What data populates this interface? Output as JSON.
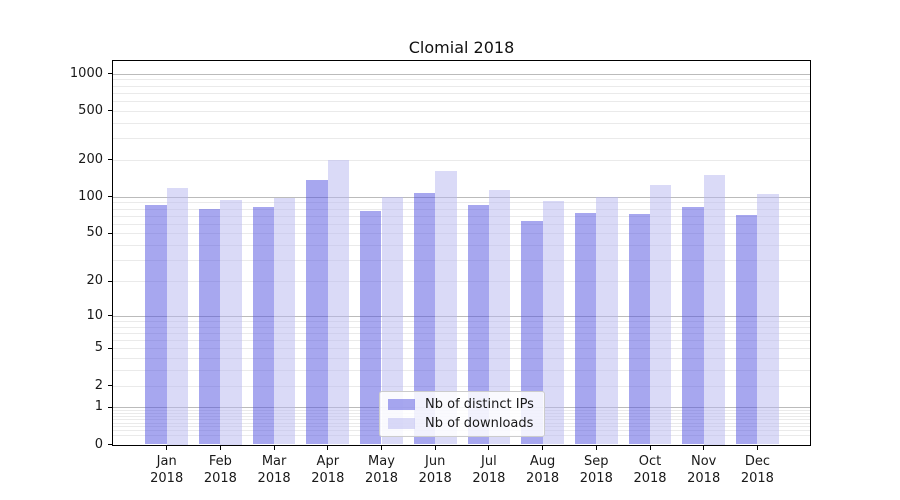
{
  "title": "Clomial 2018",
  "legend": {
    "items": [
      {
        "label": "Nb of distinct IPs",
        "color": "rgba(79,79,224,0.5)"
      },
      {
        "label": "Nb of downloads",
        "color": "rgba(181,181,239,0.5)"
      }
    ]
  },
  "chart_data": {
    "type": "bar",
    "title": "Clomial 2018",
    "categories": [
      "Jan",
      "Feb",
      "Mar",
      "Apr",
      "May",
      "Jun",
      "Jul",
      "Aug",
      "Sep",
      "Oct",
      "Nov",
      "Dec"
    ],
    "category_year": "2018",
    "series": [
      {
        "name": "Nb of distinct IPs",
        "color": "rgba(79,79,224,0.5)",
        "values": [
          86,
          80,
          82,
          136,
          77,
          108,
          86,
          63,
          74,
          72,
          82,
          71
        ]
      },
      {
        "name": "Nb of downloads",
        "color": "rgba(181,181,239,0.5)",
        "values": [
          118,
          95,
          97,
          200,
          99,
          162,
          114,
          92,
          100,
          125,
          152,
          106
        ]
      }
    ],
    "yscale": "log10(1+x)",
    "yticks": [
      0,
      1,
      2,
      5,
      10,
      20,
      50,
      100,
      200,
      500,
      1000
    ],
    "minor_ticks": [
      0.2,
      0.3,
      0.4,
      0.5,
      0.6,
      0.7,
      0.8,
      0.9,
      3,
      4,
      6,
      7,
      8,
      9,
      30,
      40,
      60,
      70,
      80,
      90,
      300,
      400,
      600,
      700,
      800,
      900
    ],
    "ylim": [
      0,
      1260
    ],
    "xlabel": "",
    "ylabel": "",
    "grid": true,
    "legend_position": "bottom-center-inside"
  },
  "colors": {
    "bar_distinct_ips_rendered": "#a7a7f0",
    "bar_downloads_rendered": "#dadaf7",
    "grid_major": "#bbbbbb",
    "grid_minor": "#eaeaea",
    "axis": "#000000",
    "text": "#191919",
    "background": "#ffffff"
  }
}
